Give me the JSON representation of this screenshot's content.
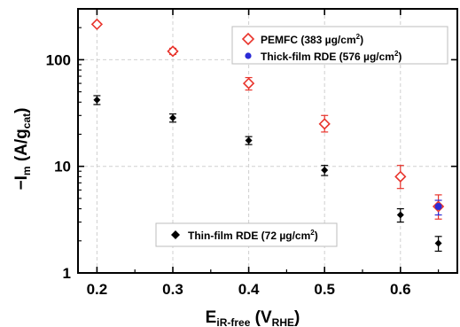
{
  "chart_data": {
    "type": "scatter",
    "xlabel": {
      "main": "E",
      "sub": "iR-free",
      "paren_open": " (V",
      "paren_sub": "RHE",
      "paren_close": ")"
    },
    "ylabel": {
      "prefix": "−I",
      "sub_m": "m",
      "mid": " (A/g",
      "sub_cat": "cat",
      "suffix": ")"
    },
    "x_ticks": [
      "0.2",
      "0.3",
      "0.4",
      "0.5",
      "0.6"
    ],
    "x_tick_values": [
      0.2,
      0.3,
      0.4,
      0.5,
      0.6
    ],
    "y_ticks": [
      "1",
      "10",
      "100"
    ],
    "y_tick_values": [
      1,
      10,
      100
    ],
    "xlim": [
      0.175,
      0.675
    ],
    "ylim": [
      1,
      300
    ],
    "y_scale": "log",
    "grid": true,
    "series": [
      {
        "legend": {
          "name": "PEMFC (383 µg/cm",
          "sup": "2",
          "close": ")"
        },
        "marker": "open-diamond",
        "color": "#e8342c",
        "points": [
          {
            "x": 0.2,
            "y": 215,
            "err_low": 215,
            "err_high": 215
          },
          {
            "x": 0.3,
            "y": 120,
            "err_low": 112,
            "err_high": 128
          },
          {
            "x": 0.4,
            "y": 60,
            "err_low": 52,
            "err_high": 68
          },
          {
            "x": 0.5,
            "y": 25,
            "err_low": 21,
            "err_high": 30
          },
          {
            "x": 0.6,
            "y": 8,
            "err_low": 6.2,
            "err_high": 10.2
          },
          {
            "x": 0.65,
            "y": 4.2,
            "err_low": 3.2,
            "err_high": 5.4
          }
        ]
      },
      {
        "legend": {
          "name": "Thick-film RDE (576 µg/cm",
          "sup": "2",
          "close": ")"
        },
        "marker": "filled-circle",
        "color": "#2b2bd6",
        "points": [
          {
            "x": 0.65,
            "y": 4.2,
            "err_low": 3.5,
            "err_high": 4.8
          }
        ]
      },
      {
        "legend": {
          "name": "Thin-film RDE (72 µg/cm",
          "sup": "2",
          "close": ")"
        },
        "marker": "filled-diamond",
        "color": "#000000",
        "points": [
          {
            "x": 0.2,
            "y": 42,
            "err_low": 38,
            "err_high": 46
          },
          {
            "x": 0.3,
            "y": 28.5,
            "err_low": 26,
            "err_high": 31
          },
          {
            "x": 0.4,
            "y": 17.5,
            "err_low": 16,
            "err_high": 19
          },
          {
            "x": 0.5,
            "y": 9.2,
            "err_low": 8.2,
            "err_high": 10.2
          },
          {
            "x": 0.6,
            "y": 3.5,
            "err_low": 3.0,
            "err_high": 4.0
          },
          {
            "x": 0.65,
            "y": 1.9,
            "err_low": 1.6,
            "err_high": 2.2
          }
        ]
      }
    ]
  }
}
